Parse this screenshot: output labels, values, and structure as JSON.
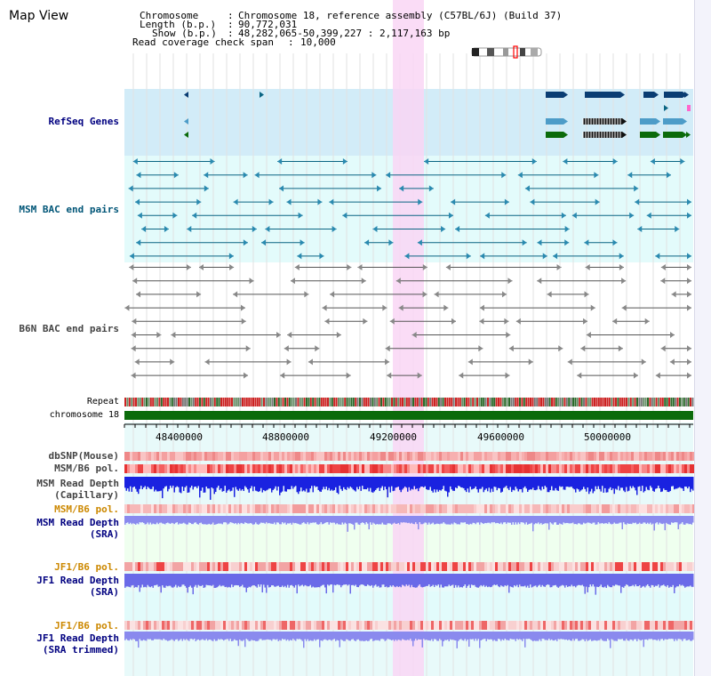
{
  "view_title": "Map View",
  "header": {
    "chromosome_key": "Chromosome",
    "chromosome_value": "Chromosome 18, reference assembly (C57BL/6J) (Build 37)",
    "length_key": "Length (b.p.)",
    "length_value": "90,772,031",
    "show_key": "Show (b.p.)",
    "show_value": "48,282,065-50,399,227 : 2,117,163 bp",
    "coverage_key": "Read coverage check span",
    "coverage_value": "10,000"
  },
  "tracks": {
    "refseq": "RefSeq Genes",
    "msm_bac": "MSM BAC end pairs",
    "b6n_bac": "B6N BAC end pairs",
    "repeat": "Repeat",
    "chromosome": "chromosome 18",
    "dbsnp": "dbSNP(Mouse)",
    "msm_b6_pol": "MSM/B6 pol.",
    "msm_depth_cap_1": "MSM Read Depth",
    "msm_depth_cap_2": "(Capillary)",
    "msm_b6_pol_sra": "MSM/B6 pol.",
    "msm_depth_sra_1": "MSM Read Depth",
    "msm_depth_sra_2": "(SRA)",
    "jf1_b6_pol": "JF1/B6 pol.",
    "jf1_depth_sra_1": "JF1 Read Depth",
    "jf1_depth_sra_2": "(SRA)",
    "jf1_b6_pol_tr": "JF1/B6 pol.",
    "jf1_depth_tr_1": "JF1 Read Depth",
    "jf1_depth_tr_2": "(SRA trimmed)"
  },
  "axis": {
    "ticks": [
      "48400000",
      "48800000",
      "49200000",
      "49600000",
      "50000000"
    ]
  },
  "colors": {
    "refseq_bg": "#d2ecf8",
    "msm_bg": "#e3fbfb",
    "depth_bg": "#efffef",
    "highlight": "#f9d6f4",
    "dark_blue": "#0a3d73",
    "teal": "#0b6583",
    "green": "#0b6b0b",
    "gray": "#555555",
    "label_blue": "#000080",
    "label_teal": "#005577",
    "label_orange": "#cc8800",
    "label_gray": "#444444"
  }
}
